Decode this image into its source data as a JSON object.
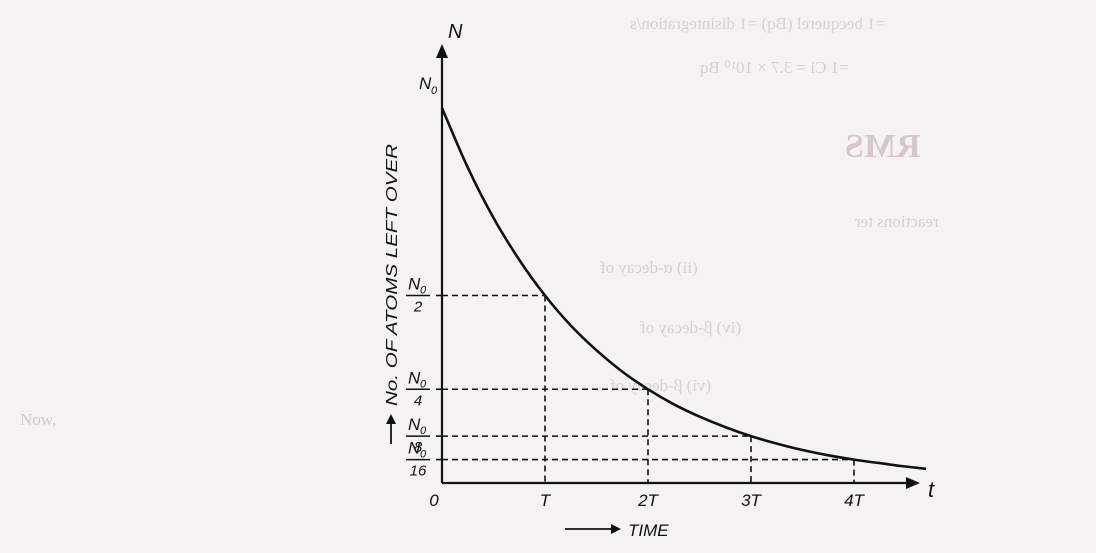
{
  "background_bleed": {
    "lines": [
      "=1 becquerel (Bq) =1 disintegration/s",
      "=1 Ci = 3.7 × 10¹⁰ Bq",
      "RMS",
      "reactions ter",
      "(ii) α-decay of",
      "(iv) β-decay of",
      "(vi) β-decay of",
      "Now,"
    ]
  },
  "chart_data": {
    "type": "line",
    "title": "",
    "xlabel": "TIME",
    "ylabel": "No. OF ATOMS LEFT OVER",
    "x_axis_symbol": "t",
    "y_axis_symbol": "N",
    "x_ticks": [
      {
        "value": 0,
        "label": "0"
      },
      {
        "value": 1,
        "label": "T"
      },
      {
        "value": 2,
        "label": "2T"
      },
      {
        "value": 3,
        "label": "3T"
      },
      {
        "value": 4,
        "label": "4T"
      }
    ],
    "y_ticks": [
      {
        "value": 1,
        "num": "N",
        "sub": "0",
        "den": ""
      },
      {
        "value": 0.5,
        "num": "N",
        "sub": "0",
        "den": "2"
      },
      {
        "value": 0.25,
        "num": "N",
        "sub": "0",
        "den": "4"
      },
      {
        "value": 0.125,
        "num": "N",
        "sub": "0",
        "den": "8"
      },
      {
        "value": 0.0625,
        "num": "N",
        "sub": "0",
        "den": "16"
      }
    ],
    "xlim": [
      0,
      4.8
    ],
    "ylim": [
      0,
      1.12
    ],
    "series": [
      {
        "x": [
          0,
          0.25,
          0.5,
          0.75,
          1,
          1.25,
          1.5,
          1.75,
          2,
          2.25,
          2.5,
          2.75,
          3,
          3.25,
          3.5,
          3.75,
          4,
          4.25,
          4.5,
          4.7
        ],
        "y": [
          1,
          0.841,
          0.707,
          0.595,
          0.5,
          0.42,
          0.354,
          0.297,
          0.25,
          0.21,
          0.177,
          0.149,
          0.125,
          0.105,
          0.088,
          0.074,
          0.0625,
          0.053,
          0.044,
          0.038
        ]
      }
    ],
    "guide_points": [
      {
        "x": 1,
        "y": 0.5
      },
      {
        "x": 2,
        "y": 0.25
      },
      {
        "x": 3,
        "y": 0.125
      },
      {
        "x": 4,
        "y": 0.0625
      }
    ],
    "grid": false,
    "colors": {
      "ink": "#111111",
      "paper": "#f4f3f1"
    }
  }
}
